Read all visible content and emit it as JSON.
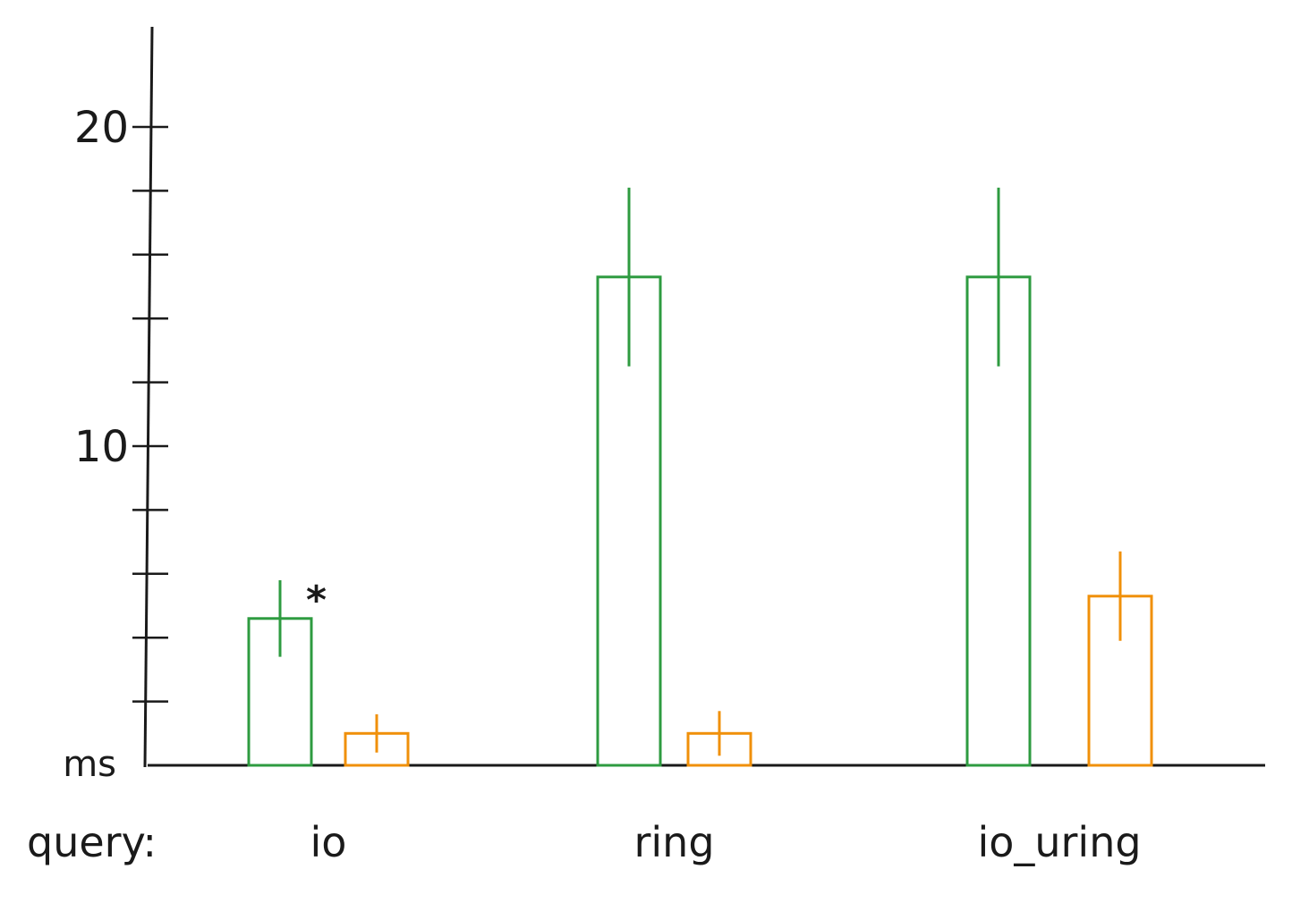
{
  "chart_data": {
    "type": "bar",
    "categories": [
      "io",
      "ring",
      "io_uring"
    ],
    "series": [
      {
        "values": [
          4.6,
          15.3,
          15.3
        ],
        "errors": [
          1.2,
          2.8,
          2.8
        ],
        "color": "#2e9b40"
      },
      {
        "values": [
          1.0,
          1.0,
          5.3
        ],
        "errors": [
          0.6,
          0.7,
          1.4
        ],
        "color": "#f0900a"
      }
    ],
    "annotations": [
      {
        "category": "io",
        "series": 0,
        "text": "*"
      }
    ],
    "ylim": [
      0,
      23
    ],
    "yticks": [
      2,
      4,
      6,
      8,
      10,
      12,
      14,
      16,
      18,
      20
    ],
    "ytick_labels": {
      "10": "10",
      "20": "20"
    },
    "ylabel": "ms",
    "xlabel": "query:",
    "grid": false
  }
}
